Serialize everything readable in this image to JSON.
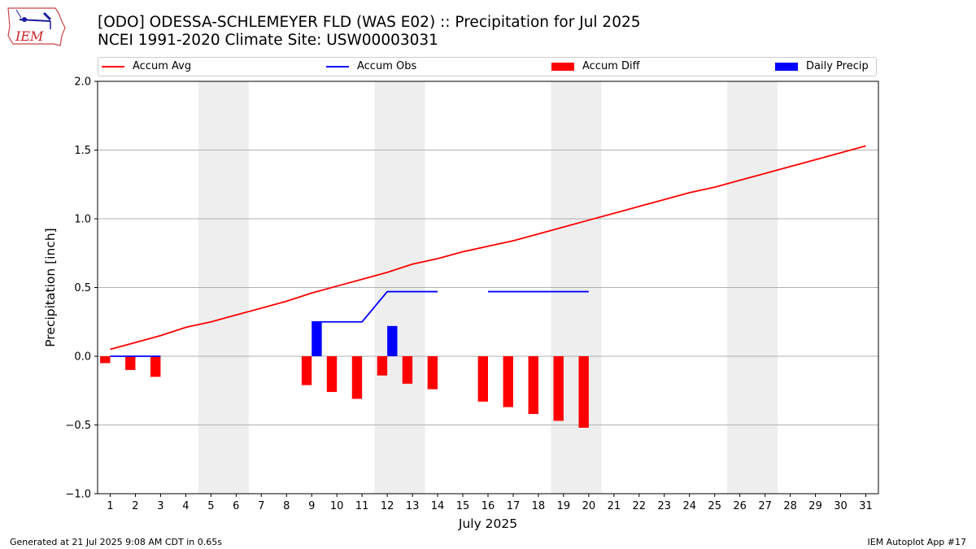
{
  "header": {
    "title_line1": "[ODO] ODESSA-SCHLEMEYER FLD (WAS E02) :: Precipitation for Jul 2025",
    "title_line2": "NCEI 1991-2020 Climate Site: USW00003031",
    "logo_text": "IEM"
  },
  "footer": {
    "left": "Generated at 21 Jul 2025 9:08 AM CDT in 0.65s",
    "right": "IEM Autoplot App #17"
  },
  "colors": {
    "avg": "#ff0000",
    "obs": "#0000ff",
    "diff": "#ff0000",
    "precip": "#0000ff",
    "weekend": "#eeeeee",
    "grid": "#b0b0b0"
  },
  "chart_data": {
    "type": "bar+line",
    "xlabel": "July 2025",
    "ylabel": "Precipitation [inch]",
    "xlim": [
      0.5,
      31.5
    ],
    "ylim": [
      -1.0,
      2.0
    ],
    "yticks": [
      -1.0,
      -0.5,
      0.0,
      0.5,
      1.0,
      1.5,
      2.0
    ],
    "ytick_labels": [
      "−1.0",
      "−0.5",
      "0.0",
      "0.5",
      "1.0",
      "1.5",
      "2.0"
    ],
    "grid": "horizontal",
    "legend_position": "top",
    "weekend_shading": [
      [
        4.5,
        6.5
      ],
      [
        11.5,
        13.5
      ],
      [
        18.5,
        20.5
      ],
      [
        25.5,
        27.5
      ]
    ],
    "days": [
      1,
      2,
      3,
      4,
      5,
      6,
      7,
      8,
      9,
      10,
      11,
      12,
      13,
      14,
      15,
      16,
      17,
      18,
      19,
      20,
      21,
      22,
      23,
      24,
      25,
      26,
      27,
      28,
      29,
      30,
      31
    ],
    "series": [
      {
        "name": "Accum Avg",
        "kind": "line",
        "color": "#ff0000",
        "x": [
          1,
          2,
          3,
          4,
          5,
          6,
          7,
          8,
          9,
          10,
          11,
          12,
          13,
          14,
          15,
          16,
          17,
          18,
          19,
          20,
          21,
          22,
          23,
          24,
          25,
          26,
          27,
          28,
          29,
          30,
          31
        ],
        "values": [
          0.05,
          0.1,
          0.15,
          0.21,
          0.25,
          0.3,
          0.35,
          0.4,
          0.46,
          0.51,
          0.56,
          0.61,
          0.67,
          0.71,
          0.76,
          0.8,
          0.84,
          0.89,
          0.94,
          0.99,
          1.04,
          1.09,
          1.14,
          1.19,
          1.23,
          1.28,
          1.33,
          1.38,
          1.43,
          1.48,
          1.53
        ]
      },
      {
        "name": "Accum Obs",
        "kind": "line",
        "color": "#0000ff",
        "segments": [
          {
            "x": [
              1,
              2,
              3
            ],
            "values": [
              0.0,
              0.0,
              0.0
            ]
          },
          {
            "x": [
              9,
              10,
              11,
              12,
              13,
              14
            ],
            "values": [
              0.25,
              0.25,
              0.25,
              0.47,
              0.47,
              0.47
            ]
          },
          {
            "x": [
              16,
              17,
              18,
              19,
              20
            ],
            "values": [
              0.47,
              0.47,
              0.47,
              0.47,
              0.47
            ]
          }
        ]
      },
      {
        "name": "Accum Diff",
        "kind": "bar",
        "color": "#ff0000",
        "offset": -0.2,
        "x": [
          1,
          2,
          3,
          9,
          10,
          11,
          12,
          13,
          14,
          16,
          17,
          18,
          19,
          20
        ],
        "values": [
          -0.05,
          -0.1,
          -0.15,
          -0.21,
          -0.26,
          -0.31,
          -0.14,
          -0.2,
          -0.24,
          -0.33,
          -0.37,
          -0.42,
          -0.47,
          -0.52
        ]
      },
      {
        "name": "Daily Precip",
        "kind": "bar",
        "color": "#0000ff",
        "offset": 0.2,
        "x": [
          9,
          12
        ],
        "values": [
          0.25,
          0.22
        ]
      }
    ]
  }
}
